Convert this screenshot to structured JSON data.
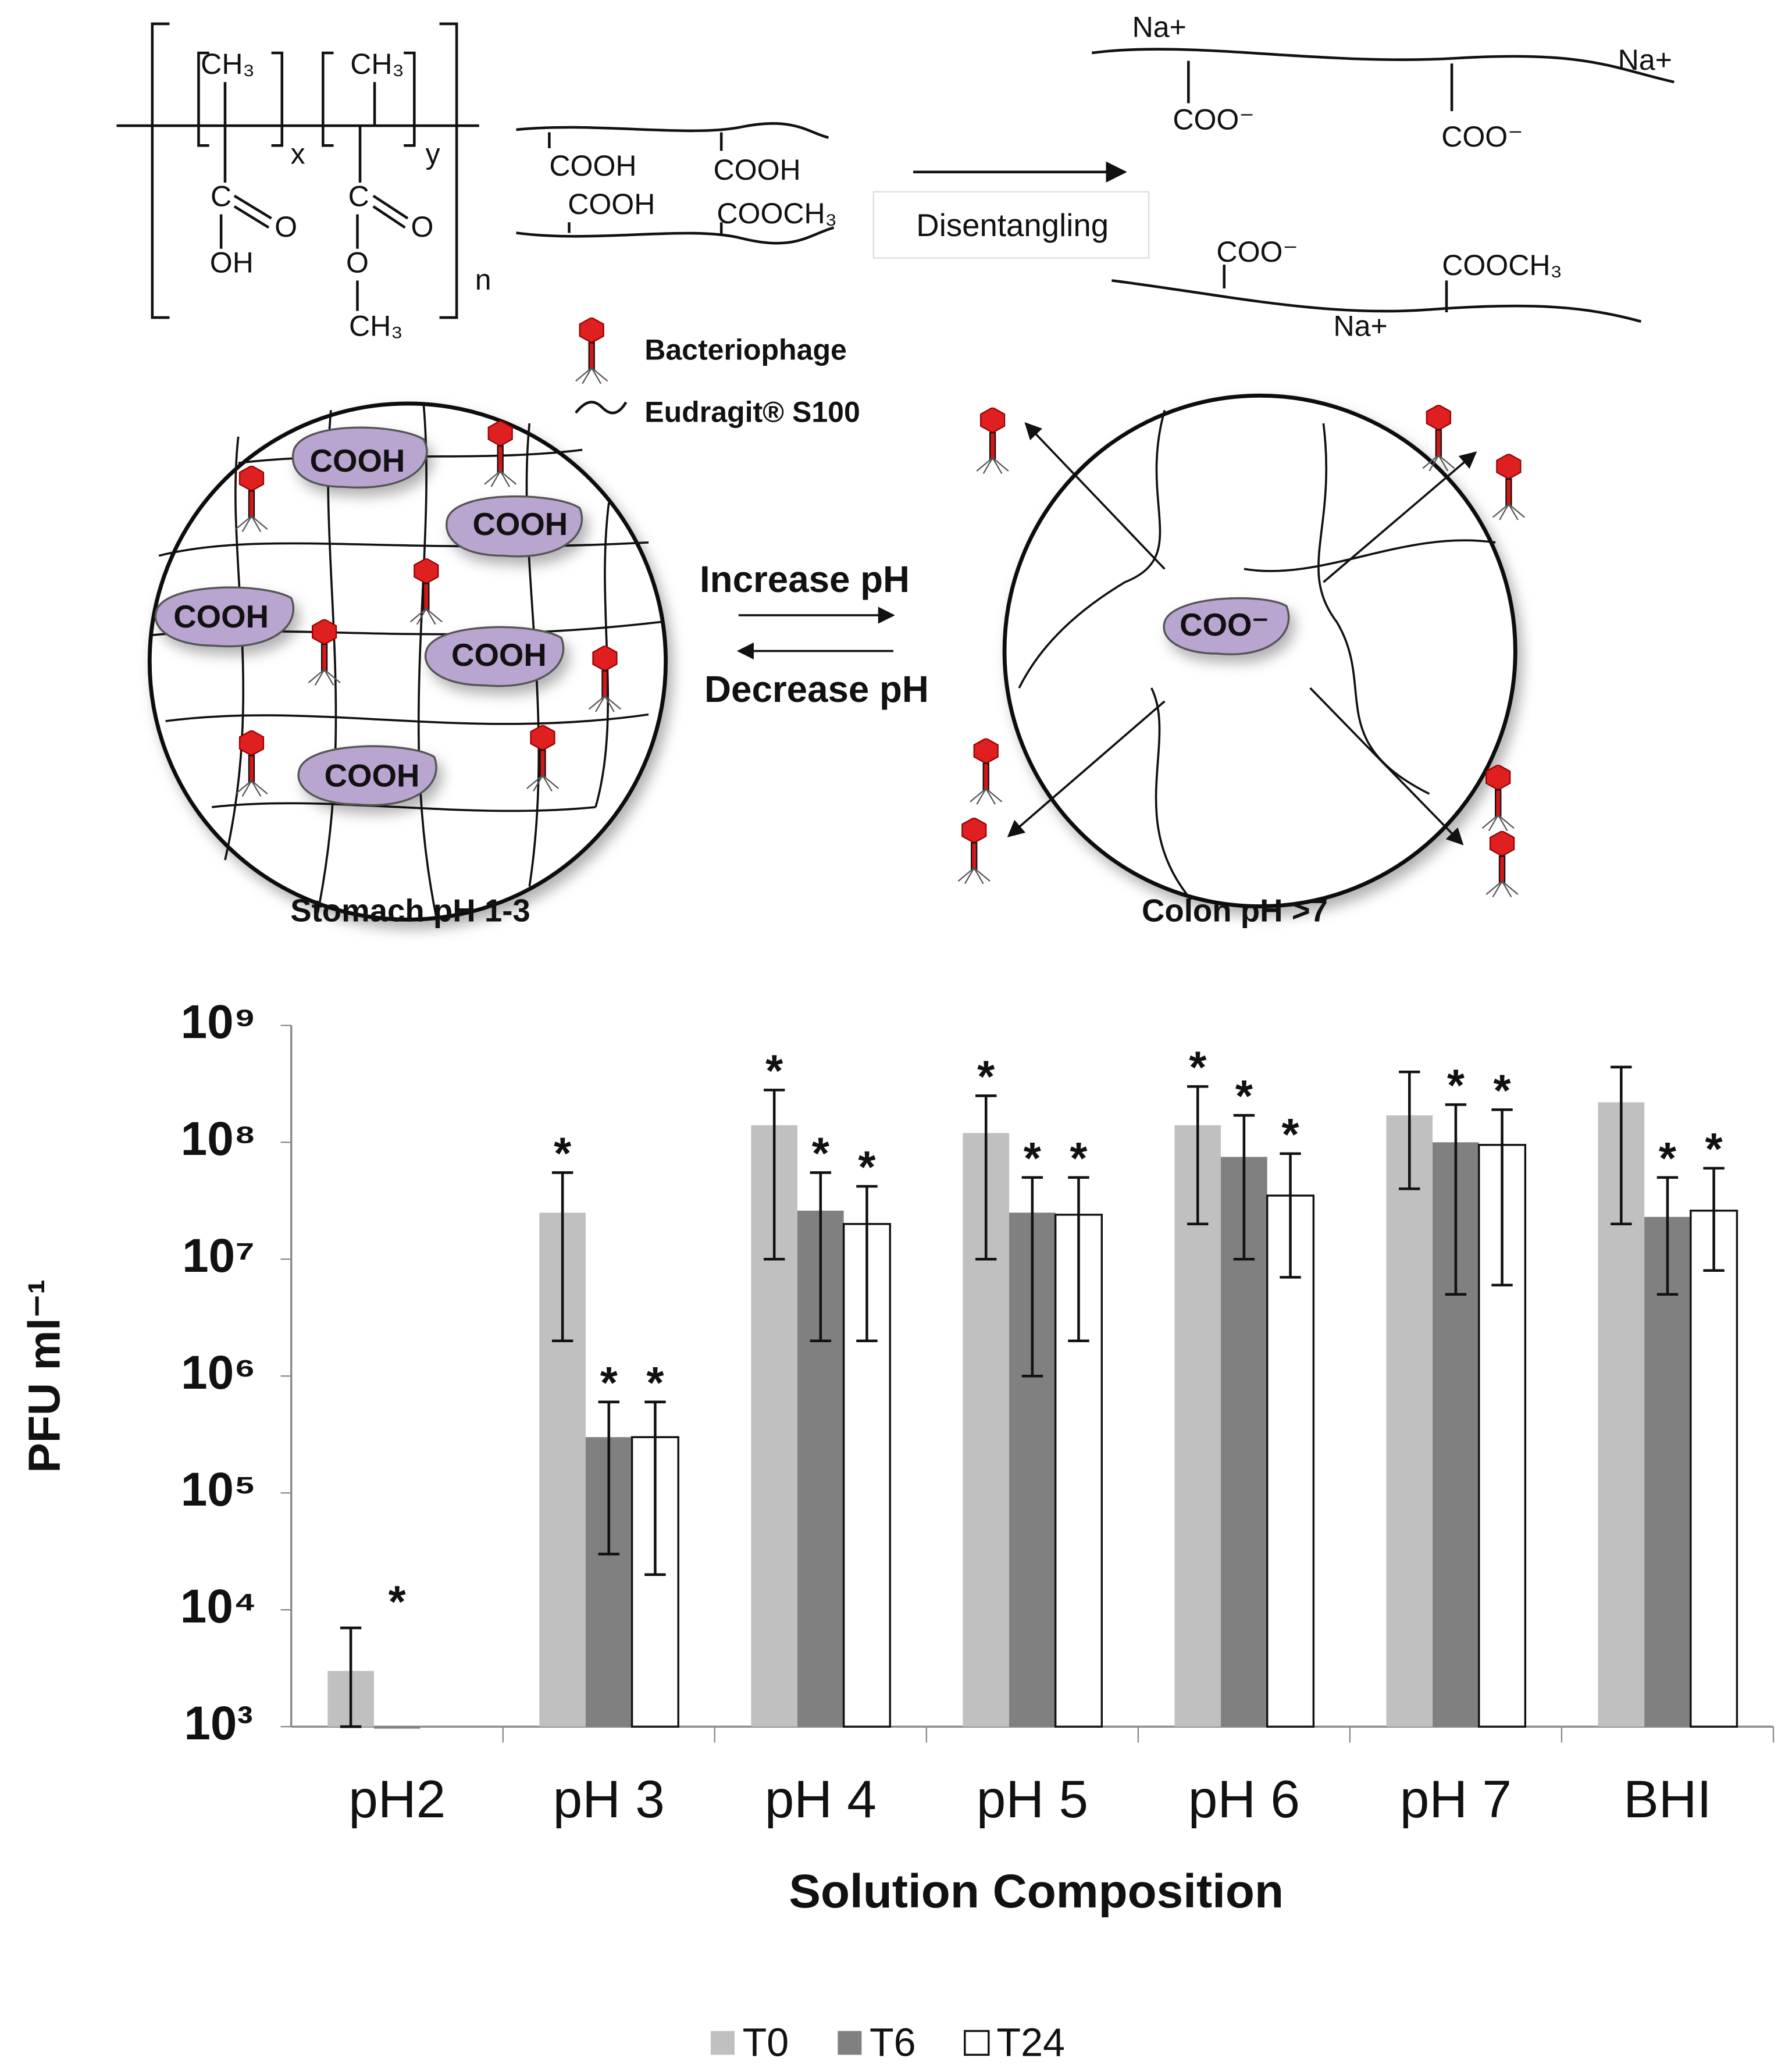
{
  "diagram": {
    "formula": {
      "methyl_1": "CH₃",
      "methyl_2": "CH₃",
      "x": "x",
      "y": "y",
      "n": "n",
      "carbon_1": "C",
      "oxygen_1": "O",
      "hydroxyl": "OH",
      "carbon_2": "C",
      "oxygen_2": "O",
      "oxygen_3": "O",
      "methyl_3": "CH₃"
    },
    "chain_groups": [
      "COOH",
      "COOH",
      "COOH",
      "COOCH₃"
    ],
    "arrow_label": "Disentangling",
    "ionized_chains": [
      "Na+",
      "Na+",
      "COO⁻",
      "COO⁻",
      "COO⁻",
      "COOCH₃",
      "Na+"
    ],
    "legend": [
      "Bacteriophage",
      "Eudragit® S100"
    ],
    "stomach_groups": [
      "COOH",
      "COOH",
      "COOH",
      "COOH",
      "COOH"
    ],
    "ph_arrows": [
      "Increase pH",
      "Decrease pH"
    ],
    "colon_group": "COO⁻",
    "captions": [
      "Stomach pH 1-3",
      "Colon pH >7"
    ]
  },
  "chart_data": {
    "type": "bar",
    "log_scale": true,
    "categories": [
      "pH2",
      "pH 3",
      "pH 4",
      "pH 5",
      "pH 6",
      "pH 7",
      "BHI"
    ],
    "series": [
      {
        "name": "T0",
        "color": "#c0c0c0",
        "values": [
          3000,
          25000000,
          140000000,
          120000000,
          140000000,
          170000000,
          220000000
        ],
        "lower": [
          1000,
          2000000,
          10000000,
          10000000,
          20000000,
          40000000,
          20000000
        ],
        "upper": [
          7000,
          55000000,
          280000000,
          250000000,
          300000000,
          400000000,
          440000000
        ],
        "annotations": [
          null,
          "*",
          "*",
          "*",
          "*",
          null,
          null
        ]
      },
      {
        "name": "T6",
        "color": "#808080",
        "values": [
          1000,
          300000,
          26000000,
          25000000,
          75000000,
          100000000,
          23000000
        ],
        "lower": [
          null,
          30000,
          2000000,
          1000000,
          10000000,
          5000000,
          5000000
        ],
        "upper": [
          null,
          600000,
          55000000,
          50000000,
          170000000,
          210000000,
          50000000
        ],
        "annotations": [
          "*",
          "*",
          "*",
          "*",
          "*",
          "*",
          "*"
        ]
      },
      {
        "name": "T24",
        "color": "#ffffff",
        "values": [
          null,
          300000,
          20000000,
          24000000,
          35000000,
          95000000,
          26000000
        ],
        "lower": [
          null,
          20000,
          2000000,
          2000000,
          7000000,
          6000000,
          8000000
        ],
        "upper": [
          null,
          600000,
          42000000,
          50000000,
          80000000,
          190000000,
          60000000
        ],
        "annotations": [
          null,
          "*",
          "*",
          "*",
          "*",
          "*",
          "*"
        ]
      }
    ],
    "ylim": [
      1000,
      1000000000
    ],
    "yticks": [
      {
        "value": 1000,
        "label": "10³"
      },
      {
        "value": 10000,
        "label": "10⁴"
      },
      {
        "value": 100000,
        "label": "10⁵"
      },
      {
        "value": 1000000,
        "label": "10⁶"
      },
      {
        "value": 10000000,
        "label": "10⁷"
      },
      {
        "value": 100000000,
        "label": "10⁸"
      },
      {
        "value": 1000000000,
        "label": "10⁹"
      }
    ],
    "ylabel": "PFU ml⁻¹",
    "xlabel": "Solution Composition",
    "legend": "bottom",
    "grid": false
  }
}
